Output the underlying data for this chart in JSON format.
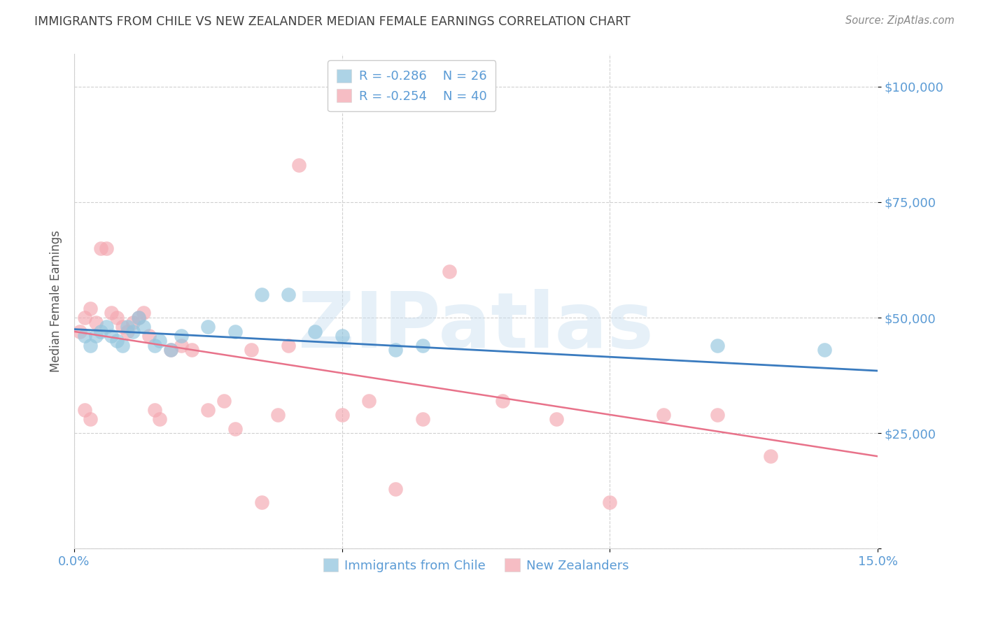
{
  "title": "IMMIGRANTS FROM CHILE VS NEW ZEALANDER MEDIAN FEMALE EARNINGS CORRELATION CHART",
  "source": "Source: ZipAtlas.com",
  "ylabel": "Median Female Earnings",
  "yticks": [
    0,
    25000,
    50000,
    75000,
    100000
  ],
  "ytick_labels": [
    "",
    "$25,000",
    "$50,000",
    "$75,000",
    "$100,000"
  ],
  "xlim": [
    0.0,
    0.15
  ],
  "ylim": [
    0,
    107000
  ],
  "legend_blue_r": "R = -0.286",
  "legend_blue_n": "N = 26",
  "legend_pink_r": "R = -0.254",
  "legend_pink_n": "N = 40",
  "legend_label_blue": "Immigrants from Chile",
  "legend_label_pink": "New Zealanders",
  "watermark": "ZIPatlas",
  "blue_color": "#92c5de",
  "pink_color": "#f4a7b0",
  "blue_line_color": "#3a7bbf",
  "pink_line_color": "#e8728a",
  "title_color": "#404040",
  "axis_label_color": "#5b9bd5",
  "grid_color": "#d0d0d0",
  "scatter_blue_x": [
    0.002,
    0.003,
    0.004,
    0.005,
    0.006,
    0.007,
    0.008,
    0.009,
    0.01,
    0.011,
    0.012,
    0.013,
    0.015,
    0.016,
    0.018,
    0.02,
    0.025,
    0.03,
    0.035,
    0.04,
    0.045,
    0.05,
    0.06,
    0.065,
    0.12,
    0.14
  ],
  "scatter_blue_y": [
    46000,
    44000,
    46000,
    47000,
    48000,
    46000,
    45000,
    44000,
    48000,
    47000,
    50000,
    48000,
    44000,
    45000,
    43000,
    46000,
    48000,
    47000,
    55000,
    55000,
    47000,
    46000,
    43000,
    44000,
    44000,
    43000
  ],
  "scatter_pink_x": [
    0.001,
    0.002,
    0.003,
    0.004,
    0.005,
    0.006,
    0.007,
    0.008,
    0.009,
    0.01,
    0.011,
    0.012,
    0.013,
    0.014,
    0.015,
    0.016,
    0.018,
    0.02,
    0.022,
    0.025,
    0.028,
    0.03,
    0.033,
    0.035,
    0.038,
    0.04,
    0.042,
    0.05,
    0.055,
    0.06,
    0.065,
    0.07,
    0.08,
    0.09,
    0.1,
    0.11,
    0.12,
    0.13,
    0.002,
    0.003
  ],
  "scatter_pink_y": [
    47000,
    50000,
    52000,
    49000,
    65000,
    65000,
    51000,
    50000,
    48000,
    47000,
    49000,
    50000,
    51000,
    46000,
    30000,
    28000,
    43000,
    44000,
    43000,
    30000,
    32000,
    26000,
    43000,
    10000,
    29000,
    44000,
    83000,
    29000,
    32000,
    13000,
    28000,
    60000,
    32000,
    28000,
    10000,
    29000,
    29000,
    20000,
    30000,
    28000
  ],
  "blue_trend_x": [
    0.0,
    0.15
  ],
  "blue_trend_y": [
    47500,
    38500
  ],
  "pink_trend_x": [
    0.0,
    0.15
  ],
  "pink_trend_y": [
    47000,
    20000
  ]
}
